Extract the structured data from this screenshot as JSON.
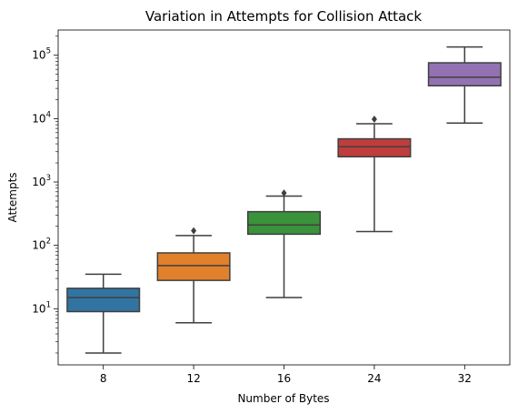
{
  "chart_data": {
    "type": "box",
    "title": "Variation in Attempts for Collision Attack",
    "xlabel": "Number of Bytes",
    "ylabel": "Attempts",
    "y_scale": "log",
    "ylim": [
      1.3,
      250000
    ],
    "y_major_ticks": [
      {
        "value": 10,
        "base": "10",
        "exp": "1"
      },
      {
        "value": 100,
        "base": "10",
        "exp": "2"
      },
      {
        "value": 1000,
        "base": "10",
        "exp": "3"
      },
      {
        "value": 10000,
        "base": "10",
        "exp": "4"
      },
      {
        "value": 100000,
        "base": "10",
        "exp": "5"
      }
    ],
    "categories": [
      "8",
      "12",
      "16",
      "24",
      "32"
    ],
    "boxes": [
      {
        "category": "8",
        "color": "#3274a1",
        "whisker_low": 2,
        "q1": 9,
        "median": 15,
        "q3": 21,
        "whisker_high": 35,
        "outliers": []
      },
      {
        "category": "12",
        "color": "#e1812c",
        "whisker_low": 6,
        "q1": 28,
        "median": 48,
        "q3": 76,
        "whisker_high": 143,
        "outliers": [
          170
        ]
      },
      {
        "category": "16",
        "color": "#3a923a",
        "whisker_low": 15,
        "q1": 150,
        "median": 210,
        "q3": 340,
        "whisker_high": 600,
        "outliers": [
          670
        ]
      },
      {
        "category": "24",
        "color": "#c03d3e",
        "whisker_low": 165,
        "q1": 2500,
        "median": 3600,
        "q3": 4800,
        "whisker_high": 8300,
        "outliers": [
          9800
        ]
      },
      {
        "category": "32",
        "color": "#9372b2",
        "whisker_low": 8500,
        "q1": 33000,
        "median": 45000,
        "q3": 76000,
        "whisker_high": 135000,
        "outliers": []
      }
    ]
  }
}
